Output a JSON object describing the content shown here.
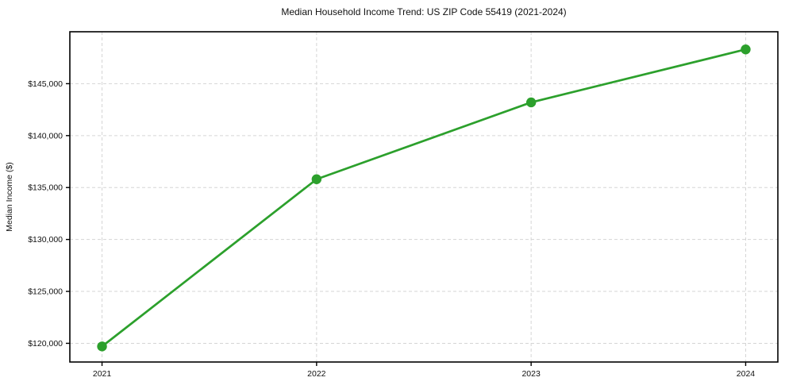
{
  "page": {
    "background": "#ffffff"
  },
  "chart_data": {
    "type": "line",
    "title": "Median Household Income Trend: US ZIP Code 55419 (2021-2024)",
    "xlabel": "",
    "ylabel": "Median Income ($)",
    "x": [
      2021,
      2022,
      2023,
      2024
    ],
    "x_tick_labels": [
      "2021",
      "2022",
      "2023",
      "2024"
    ],
    "series": [
      {
        "name": "median-household-income",
        "values": [
          119700,
          135800,
          143200,
          148300
        ],
        "color": "#2ca02c",
        "marker": "circle"
      }
    ],
    "y_ticks": [
      120000,
      125000,
      130000,
      135000,
      140000,
      145000
    ],
    "y_tick_labels": [
      "$120,000",
      "$125,000",
      "$130,000",
      "$135,000",
      "$140,000",
      "$145,000"
    ],
    "xlim": [
      2020.85,
      2024.15
    ],
    "ylim": [
      118200,
      150000
    ],
    "grid": "dashed",
    "grid_color": "#d5d5d5",
    "axis_color": "#000000",
    "text_color": "#111111",
    "legend": "none"
  }
}
